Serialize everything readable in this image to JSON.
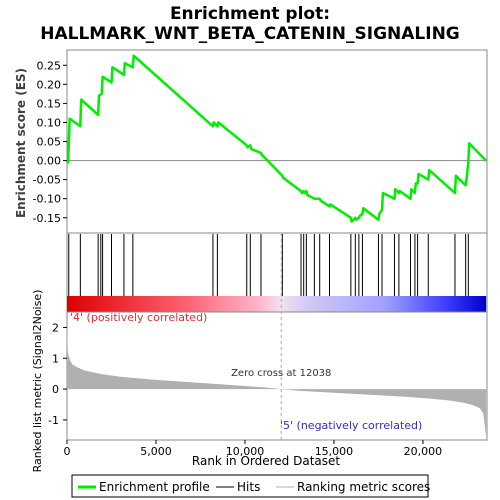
{
  "chart_data": {
    "type": "line",
    "title_line1": "Enrichment plot:",
    "title_line2": "HALLMARK_WNT_BETA_CATENIN_SIGNALING",
    "ylabel_top": "Enrichment score (ES)",
    "ylabel_bottom": "Ranked list metric (Signal2Noise)",
    "xlabel": "Rank in Ordered Dataset",
    "x_range": [
      0,
      23600
    ],
    "x_ticks": [
      0,
      5000,
      10000,
      15000,
      20000
    ],
    "x_tick_labels": [
      "0",
      "5,000",
      "10,000",
      "15,000",
      "20,000"
    ],
    "es_ylim": [
      -0.19,
      0.29
    ],
    "es_ticks": [
      -0.15,
      -0.1,
      -0.05,
      0.0,
      0.05,
      0.1,
      0.15,
      0.2,
      0.25
    ],
    "es_tick_labels": [
      "-0.15",
      "-0.10",
      "-0.05",
      "0.00",
      "0.05",
      "0.10",
      "0.15",
      "0.20",
      "0.25"
    ],
    "metric_ylim": [
      -1.65,
      2.5
    ],
    "metric_ticks": [
      -1,
      0,
      1,
      2
    ],
    "metric_tick_labels": [
      "-1",
      "0",
      "1",
      "2"
    ],
    "enrichment_profile": {
      "name": "Enrichment profile",
      "color": "#00ee00",
      "x": [
        0,
        60,
        150,
        750,
        800,
        1750,
        1800,
        1950,
        2000,
        2500,
        2550,
        3200,
        3250,
        3700,
        3750,
        8200,
        8250,
        8450,
        8500,
        10100,
        10150,
        10300,
        10350,
        10900,
        10950,
        12100,
        12150,
        13150,
        13200,
        13300,
        13350,
        13450,
        13500,
        13900,
        13950,
        14200,
        14250,
        14750,
        14800,
        15950,
        16000,
        16200,
        16250,
        16400,
        16450,
        16600,
        16650,
        17500,
        17550,
        17700,
        17750,
        18400,
        18450,
        18650,
        18700,
        19300,
        19350,
        19550,
        19600,
        19700,
        19750,
        20300,
        20350,
        21800,
        21850,
        22400,
        22450,
        22550,
        22600,
        23550
      ],
      "y": [
        0.0,
        -0.005,
        0.11,
        0.09,
        0.16,
        0.12,
        0.17,
        0.175,
        0.22,
        0.205,
        0.245,
        0.225,
        0.255,
        0.245,
        0.275,
        0.09,
        0.1,
        0.09,
        0.1,
        0.04,
        0.035,
        0.04,
        0.03,
        0.02,
        0.015,
        -0.04,
        -0.045,
        -0.08,
        -0.085,
        -0.08,
        -0.085,
        -0.08,
        -0.09,
        -0.1,
        -0.1,
        -0.1,
        -0.105,
        -0.12,
        -0.115,
        -0.15,
        -0.16,
        -0.15,
        -0.155,
        -0.15,
        -0.145,
        -0.14,
        -0.125,
        -0.155,
        -0.14,
        -0.13,
        -0.085,
        -0.1,
        -0.075,
        -0.085,
        -0.08,
        -0.1,
        -0.075,
        -0.085,
        -0.06,
        -0.06,
        -0.035,
        -0.05,
        -0.025,
        -0.085,
        -0.04,
        -0.065,
        -0.05,
        -0.005,
        0.045,
        0.0
      ]
    },
    "hits": {
      "name": "Hits",
      "color": "#000000",
      "x": [
        100,
        750,
        1750,
        1900,
        2000,
        2500,
        3200,
        3700,
        8200,
        8450,
        10100,
        10300,
        10900,
        12100,
        13150,
        13300,
        13450,
        13900,
        14200,
        14750,
        15950,
        16200,
        16400,
        16600,
        17500,
        17700,
        18400,
        18650,
        19300,
        19550,
        19700,
        20300,
        21800,
        22400,
        22550
      ]
    },
    "ranking_metric": {
      "name": "Ranking metric scores",
      "color": "#b0b0b0",
      "x": [
        0,
        50,
        150,
        300,
        600,
        1000,
        2000,
        3000,
        5000,
        7000,
        9000,
        11000,
        12038,
        13000,
        15000,
        17000,
        19000,
        20500,
        21500,
        22300,
        22800,
        23200,
        23400,
        23550
      ],
      "y": [
        2.0,
        1.2,
        0.95,
        0.8,
        0.7,
        0.6,
        0.48,
        0.4,
        0.3,
        0.22,
        0.14,
        0.06,
        0.0,
        -0.05,
        -0.12,
        -0.18,
        -0.25,
        -0.31,
        -0.37,
        -0.44,
        -0.52,
        -0.62,
        -0.8,
        -1.55
      ]
    },
    "zero_cross_label": "Zero cross at 12038",
    "zero_cross_x": 12038,
    "pos_label": "'4' (positively correlated)",
    "neg_label": "'5' (negatively correlated)",
    "legend": {
      "items": [
        "Enrichment profile",
        "Hits",
        "Ranking metric scores"
      ],
      "placement": "bottom"
    }
  }
}
